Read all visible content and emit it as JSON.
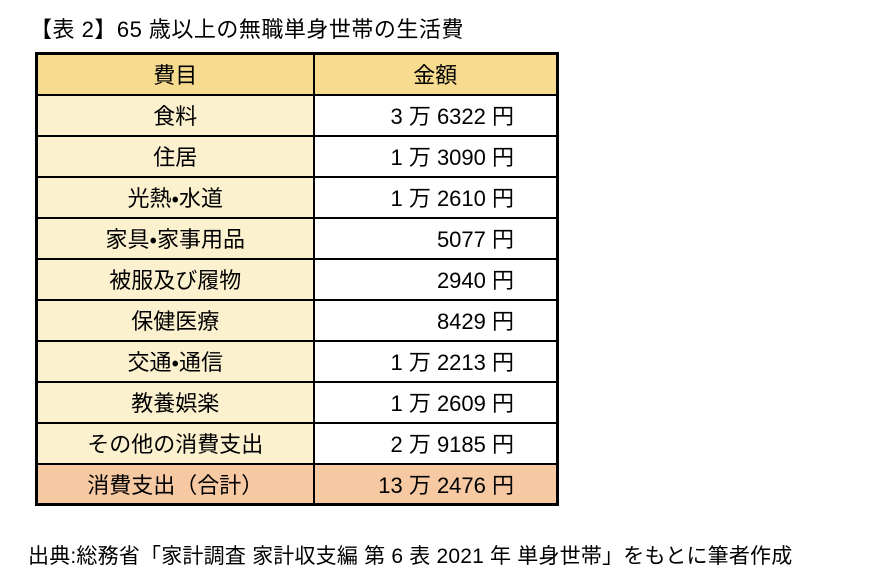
{
  "page": {
    "title": "【表 2】65 歳以上の無職単身世帯の生活費",
    "source_note": "出典:総務省「家計調査 家計収支編 第 6 表 2021 年 単身世帯」をもとに筆者作成"
  },
  "table": {
    "columns": [
      "費目",
      "金額"
    ],
    "rows": [
      {
        "item": "食料",
        "amount": "3 万 6322 円"
      },
      {
        "item": "住居",
        "amount": "1 万 3090 円"
      },
      {
        "item": "光熱・水道",
        "amount": "1 万 2610 円"
      },
      {
        "item": "家具・家事用品",
        "amount": "5077 円"
      },
      {
        "item": "被服及び履物",
        "amount": "2940 円"
      },
      {
        "item": "保健医療",
        "amount": "8429 円"
      },
      {
        "item": "交通・通信",
        "amount": "1 万 2213 円"
      },
      {
        "item": "教養娯楽",
        "amount": "1 万 2609 円"
      },
      {
        "item": "その他の消費支出",
        "amount": "2 万 9185 円"
      }
    ],
    "total": {
      "item": "消費支出（合計）",
      "amount": "13 万 2476 円"
    }
  },
  "colors": {
    "header_bg": "#F7DC8F",
    "item_column_bg": "#FBF1CF",
    "amount_column_bg": "#FFFFFF",
    "total_row_bg": "#F6C9A3",
    "border": "#000000",
    "page_bg": "#FFFFFF",
    "text": "#000000"
  },
  "chart_data": {
    "type": "table",
    "title": "【表 2】65 歳以上の無職単身世帯の生活費",
    "columns": [
      "費目",
      "金額"
    ],
    "rows": [
      [
        "食料",
        "3 万 6322 円"
      ],
      [
        "住居",
        "1 万 3090 円"
      ],
      [
        "光熱・水道",
        "1 万 2610 円"
      ],
      [
        "家具・家事用品",
        "5077 円"
      ],
      [
        "被服及び履物",
        "2940 円"
      ],
      [
        "保健医療",
        "8429 円"
      ],
      [
        "交通・通信",
        "1 万 2213 円"
      ],
      [
        "教養娯楽",
        "1 万 2609 円"
      ],
      [
        "その他の消費支出",
        "2 万 9185 円"
      ],
      [
        "消費支出（合計）",
        "13 万 2476 円"
      ]
    ],
    "values_yen": [
      36322,
      13090,
      12610,
      5077,
      2940,
      8429,
      12213,
      12609,
      29185
    ],
    "total_yen": 132476,
    "source": "出典:総務省「家計調査 家計収支編 第 6 表 2021 年 単身世帯」をもとに筆者作成"
  }
}
